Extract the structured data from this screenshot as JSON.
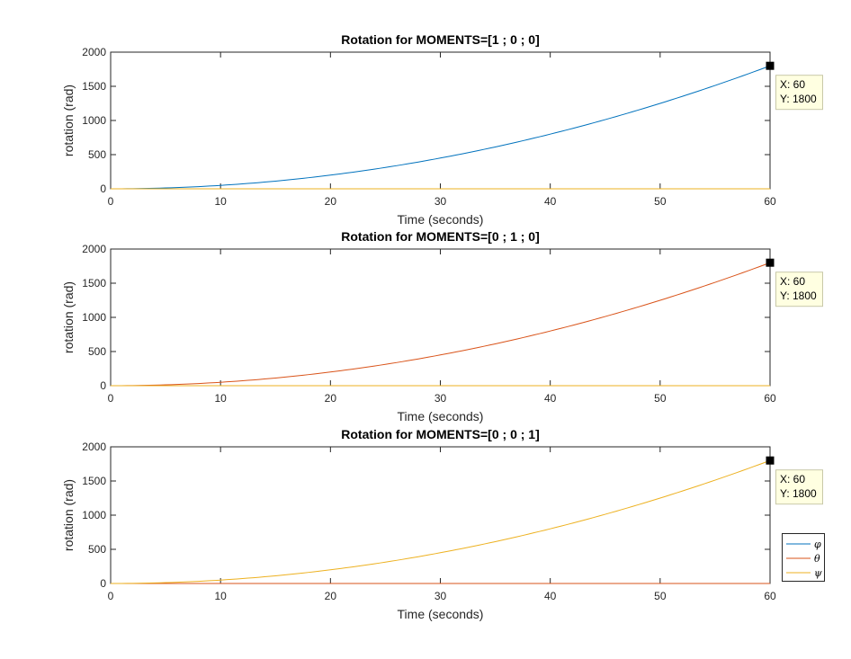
{
  "chart_data": [
    {
      "type": "line",
      "title": "Rotation for MOMENTS=[1 ; 0 ; 0]",
      "xlabel": "Time (seconds)",
      "ylabel": "rotation (rad)",
      "xlim": [
        0,
        60
      ],
      "ylim": [
        0,
        2000
      ],
      "xticks": [
        "0",
        "10",
        "20",
        "30",
        "40",
        "50",
        "60"
      ],
      "yticks": [
        "0",
        "500",
        "1000",
        "1500",
        "2000"
      ],
      "series": [
        {
          "name": "φ",
          "x": [
            0,
            5,
            10,
            15,
            20,
            25,
            30,
            35,
            40,
            45,
            50,
            55,
            60
          ],
          "values": [
            0,
            12.5,
            50,
            112.5,
            200,
            312.5,
            450,
            612.5,
            800,
            1012.5,
            1250,
            1512.5,
            1800
          ]
        },
        {
          "name": "θ",
          "x": [
            0,
            60
          ],
          "values": [
            0,
            0
          ]
        },
        {
          "name": "ψ",
          "x": [
            0,
            60
          ],
          "values": [
            0,
            0
          ]
        }
      ],
      "datatip": {
        "series": 0,
        "x": 60,
        "y": 1800,
        "x_text": "X: 60",
        "y_text": "Y: 1800"
      },
      "grid": false
    },
    {
      "type": "line",
      "title": "Rotation for MOMENTS=[0 ; 1 ; 0]",
      "xlabel": "Time (seconds)",
      "ylabel": "rotation (rad)",
      "xlim": [
        0,
        60
      ],
      "ylim": [
        0,
        2000
      ],
      "xticks": [
        "0",
        "10",
        "20",
        "30",
        "40",
        "50",
        "60"
      ],
      "yticks": [
        "0",
        "500",
        "1000",
        "1500",
        "2000"
      ],
      "series": [
        {
          "name": "φ",
          "x": [
            0,
            60
          ],
          "values": [
            0,
            0
          ]
        },
        {
          "name": "θ",
          "x": [
            0,
            5,
            10,
            15,
            20,
            25,
            30,
            35,
            40,
            45,
            50,
            55,
            60
          ],
          "values": [
            0,
            12.5,
            50,
            112.5,
            200,
            312.5,
            450,
            612.5,
            800,
            1012.5,
            1250,
            1512.5,
            1800
          ]
        },
        {
          "name": "ψ",
          "x": [
            0,
            60
          ],
          "values": [
            0,
            0
          ]
        }
      ],
      "datatip": {
        "series": 1,
        "x": 60,
        "y": 1800,
        "x_text": "X: 60",
        "y_text": "Y: 1800"
      },
      "grid": false
    },
    {
      "type": "line",
      "title": "Rotation for MOMENTS=[0 ; 0 ; 1]",
      "xlabel": "Time (seconds)",
      "ylabel": "rotation (rad)",
      "xlim": [
        0,
        60
      ],
      "ylim": [
        0,
        2000
      ],
      "xticks": [
        "0",
        "10",
        "20",
        "30",
        "40",
        "50",
        "60"
      ],
      "yticks": [
        "0",
        "500",
        "1000",
        "1500",
        "2000"
      ],
      "series": [
        {
          "name": "φ",
          "x": [
            0,
            60
          ],
          "values": [
            0,
            0
          ]
        },
        {
          "name": "θ",
          "x": [
            0,
            60
          ],
          "values": [
            0,
            0
          ]
        },
        {
          "name": "ψ",
          "x": [
            0,
            5,
            10,
            15,
            20,
            25,
            30,
            35,
            40,
            45,
            50,
            55,
            60
          ],
          "values": [
            0,
            12.5,
            50,
            112.5,
            200,
            312.5,
            450,
            612.5,
            800,
            1012.5,
            1250,
            1512.5,
            1800
          ]
        }
      ],
      "datatip": {
        "series": 2,
        "x": 60,
        "y": 1800,
        "x_text": "X: 60",
        "y_text": "Y: 1800"
      },
      "legend": {
        "entries": [
          "φ",
          "θ",
          "ψ"
        ],
        "placement": "outside-bottom-right"
      },
      "grid": false
    }
  ],
  "colors": {
    "series": [
      "#0072bd",
      "#d95319",
      "#edb120"
    ],
    "axes": "#262626",
    "datatip_bg": "#ffffe1",
    "datatip_border": "#c8c8a8"
  }
}
